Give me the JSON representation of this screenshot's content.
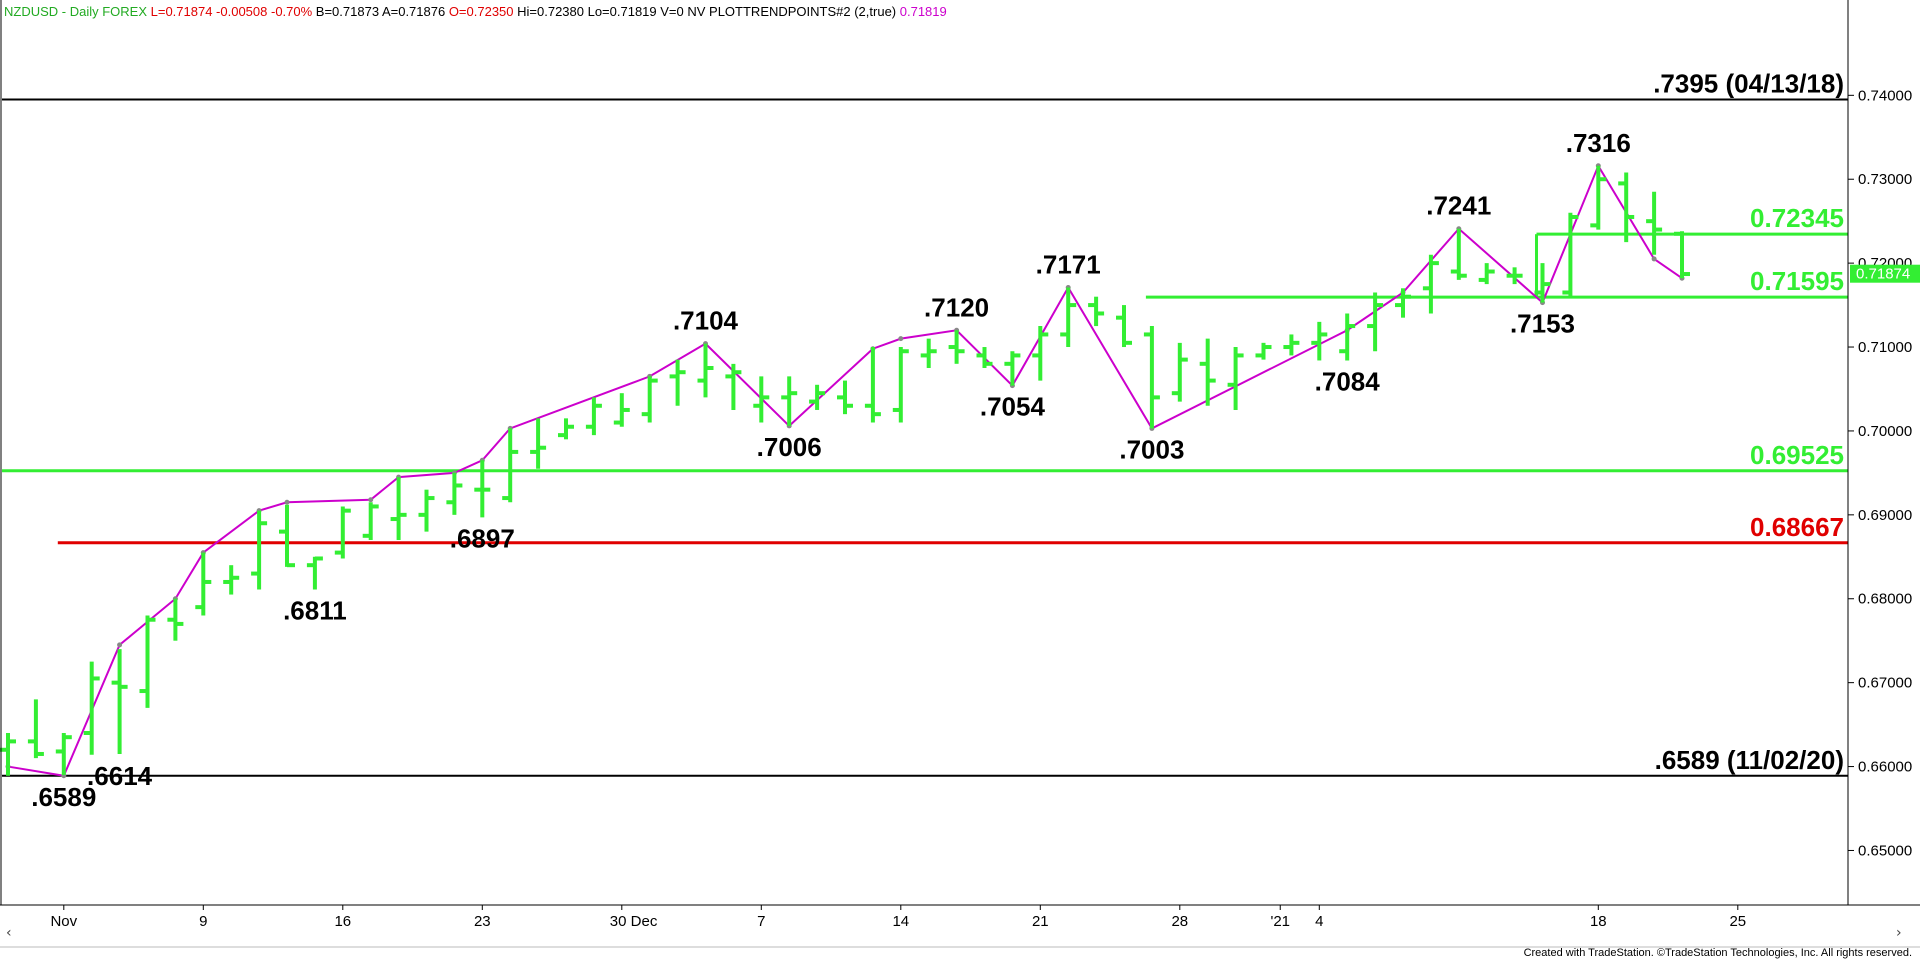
{
  "header": {
    "parts": [
      {
        "text": "NZDUSD - Daily  FOREX",
        "color": "#22aa22"
      },
      {
        "text": "L=0.71874  -0.00508  -0.70%",
        "color": "#e00000"
      },
      {
        "text": "B=0.71873  A=0.71876",
        "color": "#000000"
      },
      {
        "text": "O=0.72350",
        "color": "#e00000"
      },
      {
        "text": "Hi=0.72380  Lo=0.71819  V=0  NV  PLOTTRENDPOINTS#2 (2,true)",
        "color": "#000000"
      },
      {
        "text": "0.71819",
        "color": "#cc00cc"
      }
    ]
  },
  "footer": "Created with TradeStation. ©TradeStation Technologies, Inc. All rights reserved.",
  "colors": {
    "bars": "#33ee33",
    "trend": "#cc00cc",
    "support_line": "#33ee33",
    "red_line": "#e00000",
    "black_line": "#000000",
    "price_tag_bg": "#33ee33"
  },
  "chart_data": {
    "type": "ohlc",
    "ylim": [
      0.6435,
      0.7485
    ],
    "y_ticks": [
      "0.65000",
      "0.66000",
      "0.67000",
      "0.68000",
      "0.69000",
      "0.70000",
      "0.71000",
      "0.72000",
      "0.73000",
      "0.74000"
    ],
    "x_ticks": [
      "Nov",
      "9",
      "16",
      "23",
      "30 Dec",
      "7",
      "14",
      "21",
      "28",
      "'21",
      "4",
      "18",
      "25"
    ],
    "last_price": "0.71874",
    "bars": [
      {
        "o": 0.662,
        "h": 0.664,
        "l": 0.6589,
        "c": 0.663
      },
      {
        "o": 0.663,
        "h": 0.668,
        "l": 0.661,
        "c": 0.6615
      },
      {
        "o": 0.6618,
        "h": 0.664,
        "l": 0.659,
        "c": 0.6635
      },
      {
        "o": 0.664,
        "h": 0.6725,
        "l": 0.6614,
        "c": 0.6705
      },
      {
        "o": 0.67,
        "h": 0.674,
        "l": 0.6615,
        "c": 0.6695
      },
      {
        "o": 0.669,
        "h": 0.678,
        "l": 0.667,
        "c": 0.6775
      },
      {
        "o": 0.6775,
        "h": 0.68,
        "l": 0.675,
        "c": 0.677
      },
      {
        "o": 0.679,
        "h": 0.6855,
        "l": 0.678,
        "c": 0.682
      },
      {
        "o": 0.682,
        "h": 0.684,
        "l": 0.6805,
        "c": 0.6825
      },
      {
        "o": 0.683,
        "h": 0.6905,
        "l": 0.6811,
        "c": 0.689
      },
      {
        "o": 0.688,
        "h": 0.6912,
        "l": 0.6838,
        "c": 0.684
      },
      {
        "o": 0.684,
        "h": 0.685,
        "l": 0.6811,
        "c": 0.6848
      },
      {
        "o": 0.6855,
        "h": 0.691,
        "l": 0.6848,
        "c": 0.6905
      },
      {
        "o": 0.6875,
        "h": 0.6915,
        "l": 0.687,
        "c": 0.691
      },
      {
        "o": 0.6895,
        "h": 0.6945,
        "l": 0.687,
        "c": 0.69
      },
      {
        "o": 0.69,
        "h": 0.693,
        "l": 0.688,
        "c": 0.692
      },
      {
        "o": 0.6915,
        "h": 0.695,
        "l": 0.69,
        "c": 0.6935
      },
      {
        "o": 0.693,
        "h": 0.6965,
        "l": 0.6897,
        "c": 0.693
      },
      {
        "o": 0.692,
        "h": 0.7003,
        "l": 0.6915,
        "c": 0.6975
      },
      {
        "o": 0.6975,
        "h": 0.7015,
        "l": 0.6955,
        "c": 0.698
      },
      {
        "o": 0.6995,
        "h": 0.7015,
        "l": 0.699,
        "c": 0.7005
      },
      {
        "o": 0.7005,
        "h": 0.704,
        "l": 0.6995,
        "c": 0.703
      },
      {
        "o": 0.701,
        "h": 0.7045,
        "l": 0.7005,
        "c": 0.7025
      },
      {
        "o": 0.702,
        "h": 0.7065,
        "l": 0.701,
        "c": 0.706
      },
      {
        "o": 0.7065,
        "h": 0.7085,
        "l": 0.703,
        "c": 0.707
      },
      {
        "o": 0.706,
        "h": 0.7104,
        "l": 0.704,
        "c": 0.7075
      },
      {
        "o": 0.7065,
        "h": 0.708,
        "l": 0.7025,
        "c": 0.707
      },
      {
        "o": 0.703,
        "h": 0.7065,
        "l": 0.701,
        "c": 0.704
      },
      {
        "o": 0.704,
        "h": 0.7065,
        "l": 0.7006,
        "c": 0.7045
      },
      {
        "o": 0.7035,
        "h": 0.7055,
        "l": 0.7025,
        "c": 0.7045
      },
      {
        "o": 0.704,
        "h": 0.706,
        "l": 0.702,
        "c": 0.703
      },
      {
        "o": 0.703,
        "h": 0.71,
        "l": 0.701,
        "c": 0.702
      },
      {
        "o": 0.7025,
        "h": 0.71,
        "l": 0.701,
        "c": 0.7095
      },
      {
        "o": 0.709,
        "h": 0.711,
        "l": 0.7075,
        "c": 0.7095
      },
      {
        "o": 0.71,
        "h": 0.712,
        "l": 0.708,
        "c": 0.7095
      },
      {
        "o": 0.709,
        "h": 0.71,
        "l": 0.7075,
        "c": 0.708
      },
      {
        "o": 0.708,
        "h": 0.7095,
        "l": 0.7054,
        "c": 0.709
      },
      {
        "o": 0.709,
        "h": 0.7125,
        "l": 0.706,
        "c": 0.7115
      },
      {
        "o": 0.7115,
        "h": 0.7171,
        "l": 0.71,
        "c": 0.715
      },
      {
        "o": 0.715,
        "h": 0.716,
        "l": 0.7125,
        "c": 0.714
      },
      {
        "o": 0.7135,
        "h": 0.715,
        "l": 0.71,
        "c": 0.7105
      },
      {
        "o": 0.7115,
        "h": 0.7125,
        "l": 0.7003,
        "c": 0.704
      },
      {
        "o": 0.7045,
        "h": 0.7105,
        "l": 0.7035,
        "c": 0.7085
      },
      {
        "o": 0.708,
        "h": 0.711,
        "l": 0.703,
        "c": 0.706
      },
      {
        "o": 0.7055,
        "h": 0.71,
        "l": 0.7025,
        "c": 0.709
      },
      {
        "o": 0.709,
        "h": 0.7105,
        "l": 0.7085,
        "c": 0.71
      },
      {
        "o": 0.71,
        "h": 0.7115,
        "l": 0.709,
        "c": 0.7105
      },
      {
        "o": 0.7105,
        "h": 0.713,
        "l": 0.7084,
        "c": 0.7115
      },
      {
        "o": 0.7095,
        "h": 0.714,
        "l": 0.7084,
        "c": 0.7125
      },
      {
        "o": 0.7125,
        "h": 0.7165,
        "l": 0.7095,
        "c": 0.715
      },
      {
        "o": 0.715,
        "h": 0.717,
        "l": 0.7135,
        "c": 0.716
      },
      {
        "o": 0.717,
        "h": 0.721,
        "l": 0.714,
        "c": 0.72
      },
      {
        "o": 0.719,
        "h": 0.7241,
        "l": 0.718,
        "c": 0.7185
      },
      {
        "o": 0.718,
        "h": 0.72,
        "l": 0.7175,
        "c": 0.719
      },
      {
        "o": 0.7185,
        "h": 0.7195,
        "l": 0.7175,
        "c": 0.7185
      },
      {
        "o": 0.7165,
        "h": 0.72,
        "l": 0.7153,
        "c": 0.7175
      },
      {
        "o": 0.7165,
        "h": 0.726,
        "l": 0.716,
        "c": 0.7255
      },
      {
        "o": 0.7245,
        "h": 0.7316,
        "l": 0.724,
        "c": 0.73
      },
      {
        "o": 0.7295,
        "h": 0.7308,
        "l": 0.7225,
        "c": 0.7255
      },
      {
        "o": 0.725,
        "h": 0.7285,
        "l": 0.721,
        "c": 0.724
      },
      {
        "o": 0.7235,
        "h": 0.7238,
        "l": 0.7182,
        "c": 0.7187
      }
    ],
    "trendpoints": [
      {
        "i": 0,
        "v": 0.66
      },
      {
        "i": 2,
        "v": 0.6589
      },
      {
        "i": 4,
        "v": 0.6745
      },
      {
        "i": 6,
        "v": 0.68
      },
      {
        "i": 7,
        "v": 0.6855
      },
      {
        "i": 9,
        "v": 0.6905
      },
      {
        "i": 10,
        "v": 0.6915
      },
      {
        "i": 13,
        "v": 0.6918
      },
      {
        "i": 14,
        "v": 0.6945
      },
      {
        "i": 16,
        "v": 0.695
      },
      {
        "i": 17,
        "v": 0.6965
      },
      {
        "i": 18,
        "v": 0.7003
      },
      {
        "i": 23,
        "v": 0.7065
      },
      {
        "i": 25,
        "v": 0.7104
      },
      {
        "i": 28,
        "v": 0.7006
      },
      {
        "i": 31,
        "v": 0.7098
      },
      {
        "i": 32,
        "v": 0.711
      },
      {
        "i": 34,
        "v": 0.712
      },
      {
        "i": 36,
        "v": 0.7054
      },
      {
        "i": 38,
        "v": 0.7171
      },
      {
        "i": 41,
        "v": 0.7003
      },
      {
        "i": 48,
        "v": 0.712
      },
      {
        "i": 50,
        "v": 0.7165
      },
      {
        "i": 52,
        "v": 0.7241
      },
      {
        "i": 55,
        "v": 0.7153
      },
      {
        "i": 57,
        "v": 0.7316
      },
      {
        "i": 59,
        "v": 0.7205
      },
      {
        "i": 60,
        "v": 0.7182
      }
    ],
    "annotations": [
      {
        "text": ".6589",
        "i": 2,
        "v": 0.6589,
        "pos": "below"
      },
      {
        "text": ".6614",
        "i": 4,
        "v": 0.6614,
        "pos": "below"
      },
      {
        "text": ".6811",
        "i": 11,
        "v": 0.6811,
        "pos": "below"
      },
      {
        "text": ".6897",
        "i": 17,
        "v": 0.6897,
        "pos": "below"
      },
      {
        "text": ".7104",
        "i": 25,
        "v": 0.7104,
        "pos": "above"
      },
      {
        "text": ".7006",
        "i": 28,
        "v": 0.7006,
        "pos": "below"
      },
      {
        "text": ".7120",
        "i": 34,
        "v": 0.712,
        "pos": "above"
      },
      {
        "text": ".7054",
        "i": 36,
        "v": 0.7054,
        "pos": "below"
      },
      {
        "text": ".7171",
        "i": 38,
        "v": 0.7171,
        "pos": "above"
      },
      {
        "text": ".7003",
        "i": 41,
        "v": 0.7003,
        "pos": "below"
      },
      {
        "text": ".7084",
        "i": 48,
        "v": 0.7084,
        "pos": "below"
      },
      {
        "text": ".7241",
        "i": 52,
        "v": 0.7241,
        "pos": "above"
      },
      {
        "text": ".7153",
        "i": 55,
        "v": 0.7153,
        "pos": "below"
      },
      {
        "text": ".7316",
        "i": 57,
        "v": 0.7316,
        "pos": "above"
      }
    ],
    "hlines": [
      {
        "value": 0.7395,
        "label": ".7395 (04/13/18)",
        "kind": "black"
      },
      {
        "value": 0.72345,
        "label": "0.72345",
        "kind": "green",
        "from_i": 55
      },
      {
        "value": 0.71595,
        "label": "0.71595",
        "kind": "green",
        "from_i": 41
      },
      {
        "value": 0.69525,
        "label": "0.69525",
        "kind": "green",
        "from_i": 0
      },
      {
        "value": 0.68667,
        "label": "0.68667",
        "kind": "red",
        "from_i": 2
      },
      {
        "value": 0.6589,
        "label": ".6589 (11/02/20)",
        "kind": "black"
      }
    ]
  }
}
